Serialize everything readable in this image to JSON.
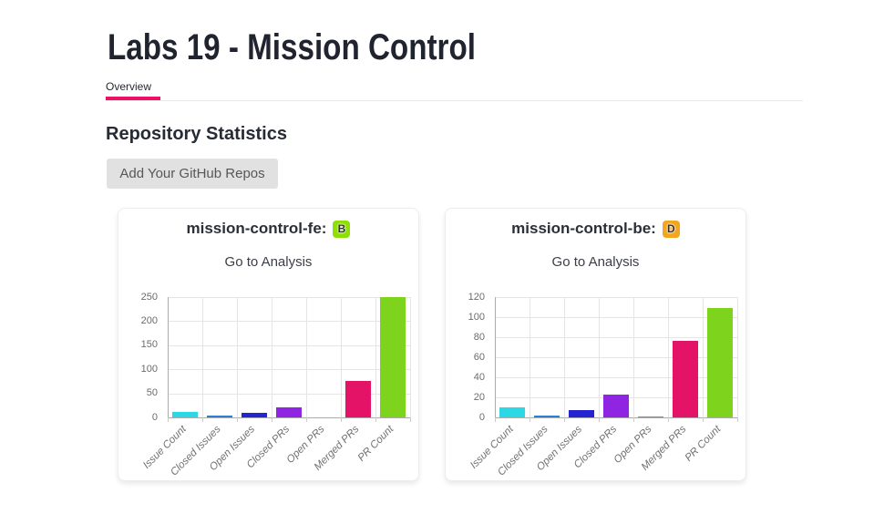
{
  "header": {
    "title": "Labs 19 - Mission Control"
  },
  "tabs": [
    {
      "label": "Overview",
      "active": true
    }
  ],
  "section": {
    "heading": "Repository Statistics",
    "button_label": "Add Your GitHub Repos"
  },
  "accent_colors": {
    "tab_underline": "#ee1066",
    "button_bg": "#e1e1e1"
  },
  "bar_palette": [
    "#2cd8e4",
    "#2e7ed2",
    "#2525cf",
    "#8f24e3",
    "#d45fa8",
    "#e51368",
    "#7ed41c"
  ],
  "cards": [
    {
      "title": "mission-control-fe:",
      "grade": "B",
      "grade_color": "#8ce003",
      "link": "Go to Analysis"
    },
    {
      "title": "mission-control-be:",
      "grade": "D",
      "grade_color": "#f4a51e",
      "link": "Go to Analysis"
    }
  ],
  "chart_data": [
    {
      "type": "bar",
      "title": "mission-control-fe:",
      "categories": [
        "Issue Count",
        "Closed Issues",
        "Open Issues",
        "Closed PRs",
        "Open PRs",
        "Merged PRs",
        "PR Count"
      ],
      "values": [
        12,
        3,
        9,
        21,
        0,
        76,
        250
      ],
      "ylim": [
        0,
        250
      ],
      "yticks": [
        250,
        200,
        150,
        100,
        50,
        0
      ],
      "grid": true,
      "legend": false
    },
    {
      "type": "bar",
      "title": "mission-control-be:",
      "categories": [
        "Issue Count",
        "Closed Issues",
        "Open Issues",
        "Closed PRs",
        "Open PRs",
        "Merged PRs",
        "PR Count"
      ],
      "values": [
        10,
        2,
        7,
        23,
        1,
        76,
        109
      ],
      "ylim": [
        0,
        120
      ],
      "yticks": [
        120,
        100,
        80,
        60,
        40,
        20,
        0
      ],
      "grid": true,
      "legend": false
    }
  ]
}
